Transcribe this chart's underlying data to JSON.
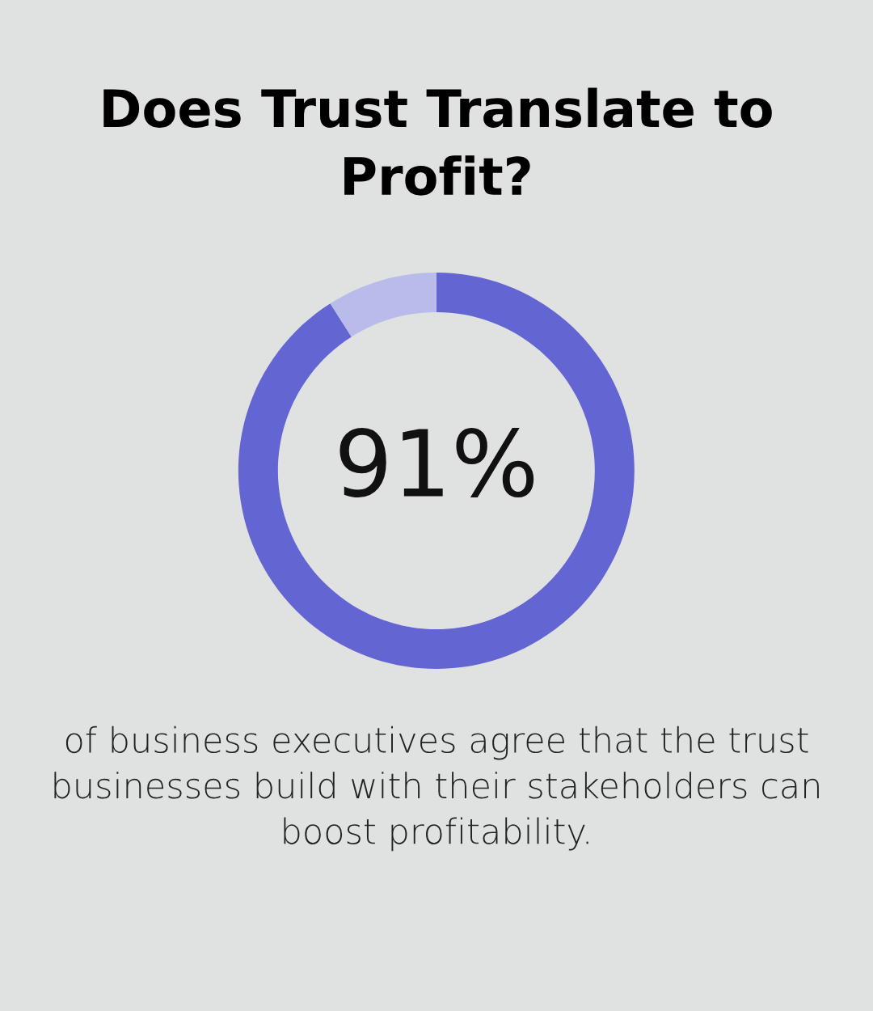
{
  "chart_data": {
    "type": "donut",
    "title": "Does Trust Translate to Profit?",
    "categories": [
      null,
      null
    ],
    "values": [
      91,
      9
    ],
    "colors": [
      "#6265d2",
      "#b9bbea"
    ],
    "value_labels": [
      "91%",
      null
    ],
    "annotations": [
      "of business executives agree that the trust businesses build with their stakeholders can boost profitability."
    ],
    "legend": false
  }
}
